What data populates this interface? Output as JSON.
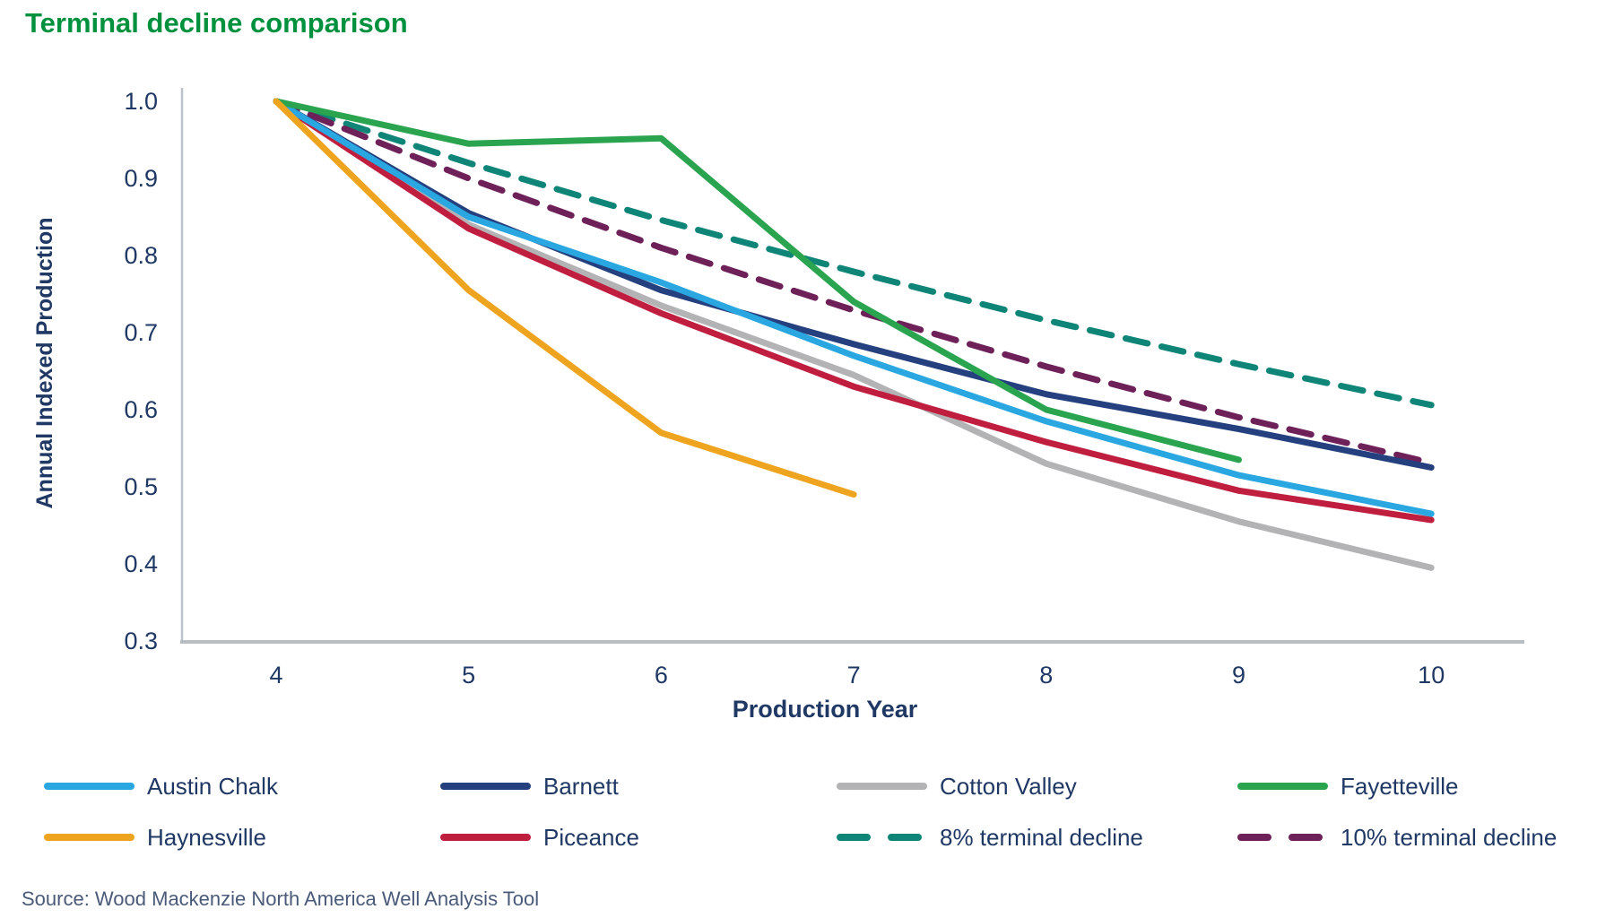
{
  "title": "Terminal decline comparison",
  "source": "Source: Wood Mackenzie North America Well Analysis Tool",
  "colors": {
    "title_green": "#00913E",
    "axis_text": "#1F3864",
    "axis_line": "#B8BDC3",
    "source_text": "#4A5A78"
  },
  "chart_data": {
    "type": "line",
    "title": "Terminal decline comparison",
    "xlabel": "Production Year",
    "ylabel": "Annual Indexed Production",
    "x_ticks": [
      "4",
      "5",
      "6",
      "7",
      "8",
      "9",
      "10"
    ],
    "y_ticks": [
      "1.0",
      "0.9",
      "0.8",
      "0.7",
      "0.6",
      "0.5",
      "0.4",
      "0.3"
    ],
    "xlim": [
      4,
      10
    ],
    "ylim": [
      0.3,
      1.0
    ],
    "grid": false,
    "legend_position": "bottom",
    "series": [
      {
        "name": "Austin Chalk",
        "color": "#2AA7E0",
        "style": "solid",
        "x": [
          4,
          5,
          6,
          7,
          8,
          9,
          10
        ],
        "values": [
          1.0,
          0.85,
          0.765,
          0.67,
          0.585,
          0.515,
          0.465
        ]
      },
      {
        "name": "Barnett",
        "color": "#24407E",
        "style": "solid",
        "x": [
          4,
          5,
          6,
          7,
          8,
          9,
          10
        ],
        "values": [
          1.0,
          0.855,
          0.755,
          0.685,
          0.62,
          0.575,
          0.525
        ]
      },
      {
        "name": "Cotton Valley",
        "color": "#B3B3B6",
        "style": "solid",
        "x": [
          4,
          5,
          6,
          7,
          8,
          9,
          10
        ],
        "values": [
          1.0,
          0.84,
          0.735,
          0.645,
          0.53,
          0.455,
          0.395
        ]
      },
      {
        "name": "Fayetteville",
        "color": "#2AA44F",
        "style": "solid",
        "x": [
          4,
          5,
          6,
          7,
          8,
          9
        ],
        "values": [
          1.0,
          0.945,
          0.952,
          0.74,
          0.6,
          0.535
        ]
      },
      {
        "name": "Haynesville",
        "color": "#EEA41E",
        "style": "solid",
        "x": [
          4,
          5,
          6,
          7
        ],
        "values": [
          1.0,
          0.755,
          0.57,
          0.49
        ]
      },
      {
        "name": "Piceance",
        "color": "#C01E3F",
        "style": "solid",
        "x": [
          4,
          5,
          6,
          7,
          8,
          9,
          10
        ],
        "values": [
          1.0,
          0.835,
          0.725,
          0.63,
          0.558,
          0.495,
          0.457
        ]
      },
      {
        "name": "8% terminal decline",
        "color": "#0F8578",
        "style": "dashed",
        "x": [
          4,
          5,
          6,
          7,
          8,
          9,
          10
        ],
        "values": [
          1.0,
          0.92,
          0.846,
          0.779,
          0.716,
          0.659,
          0.606
        ]
      },
      {
        "name": "10% terminal decline",
        "color": "#6E2158",
        "style": "dashed",
        "x": [
          4,
          5,
          6,
          7,
          8,
          9,
          10
        ],
        "values": [
          1.0,
          0.9,
          0.81,
          0.729,
          0.656,
          0.59,
          0.531
        ]
      }
    ]
  },
  "legend": {
    "items": [
      {
        "label": "Austin Chalk",
        "series": 0
      },
      {
        "label": "Barnett",
        "series": 1
      },
      {
        "label": "Cotton Valley",
        "series": 2
      },
      {
        "label": "Fayetteville",
        "series": 3
      },
      {
        "label": "Haynesville",
        "series": 4
      },
      {
        "label": "Piceance",
        "series": 5
      },
      {
        "label": "8% terminal decline",
        "series": 6
      },
      {
        "label": "10% terminal decline",
        "series": 7
      }
    ]
  }
}
